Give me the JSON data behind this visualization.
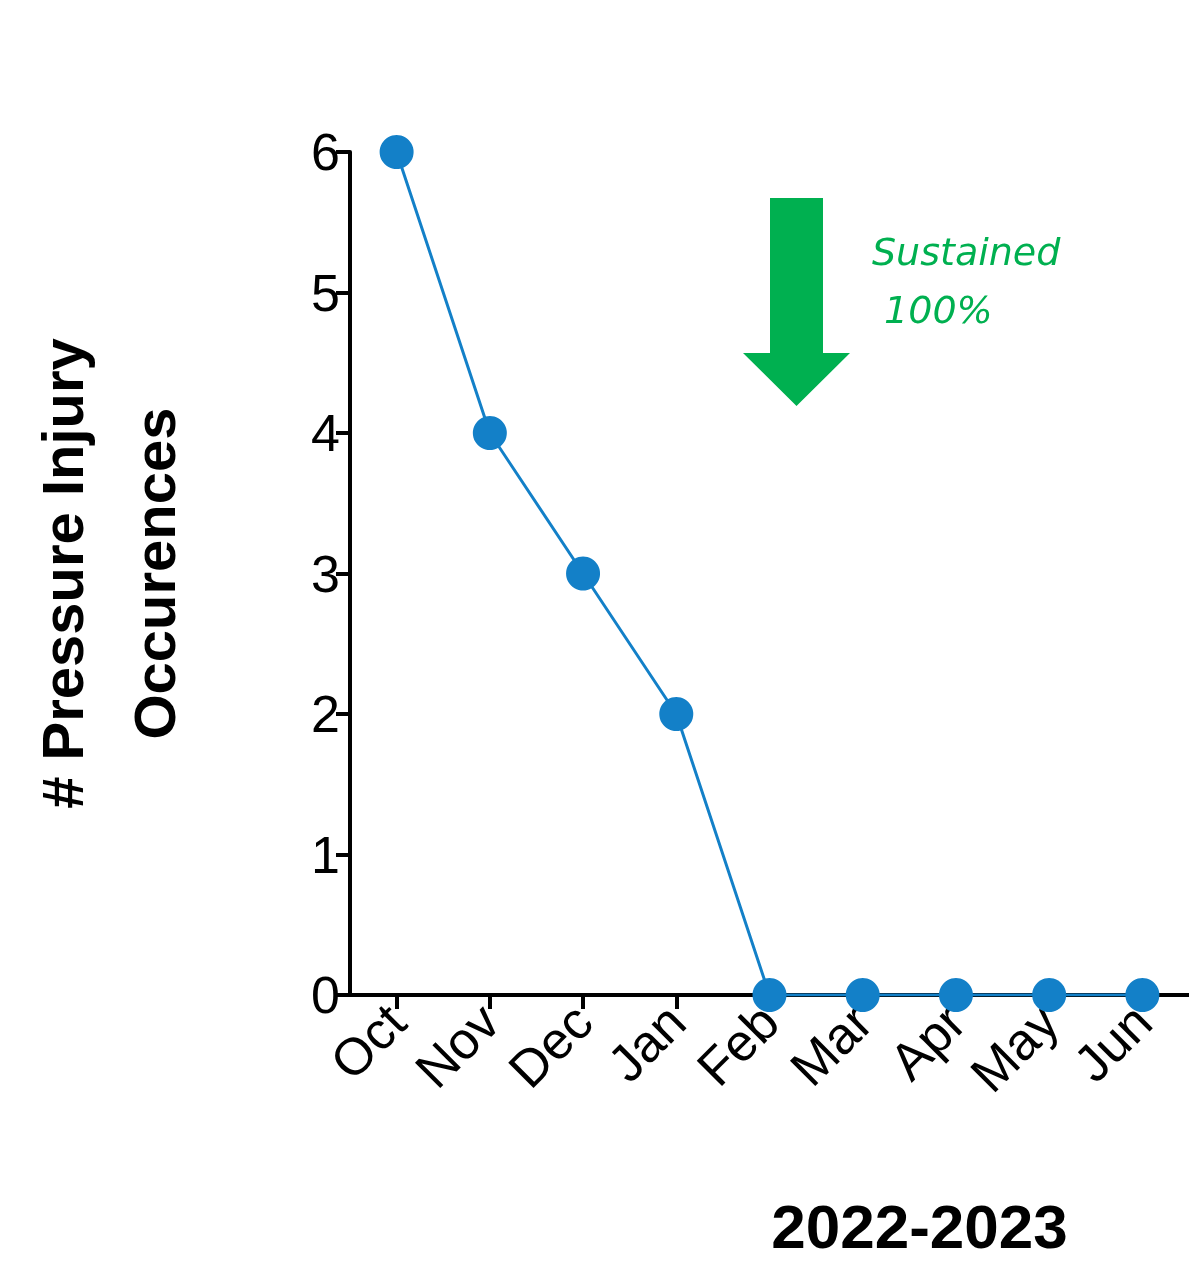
{
  "chart_data": {
    "type": "line",
    "xlabel": "2022-2023",
    "ylabel": "# Pressure Injury Occurences",
    "categories": [
      "Oct",
      "Nov",
      "Dec",
      "Jan",
      "Feb",
      "Mar",
      "Apr",
      "May",
      "Jun"
    ],
    "series": [
      {
        "color": "#1380c8",
        "values": [
          6,
          4,
          3,
          2,
          0,
          0,
          0,
          0,
          0
        ]
      }
    ],
    "ylim": [
      0,
      6
    ],
    "yticks": [
      0,
      1,
      2,
      3,
      4,
      5,
      6
    ],
    "grid": false,
    "marker": "circle",
    "line_style": "solid",
    "annotations": [
      "Sustained 100%"
    ]
  }
}
